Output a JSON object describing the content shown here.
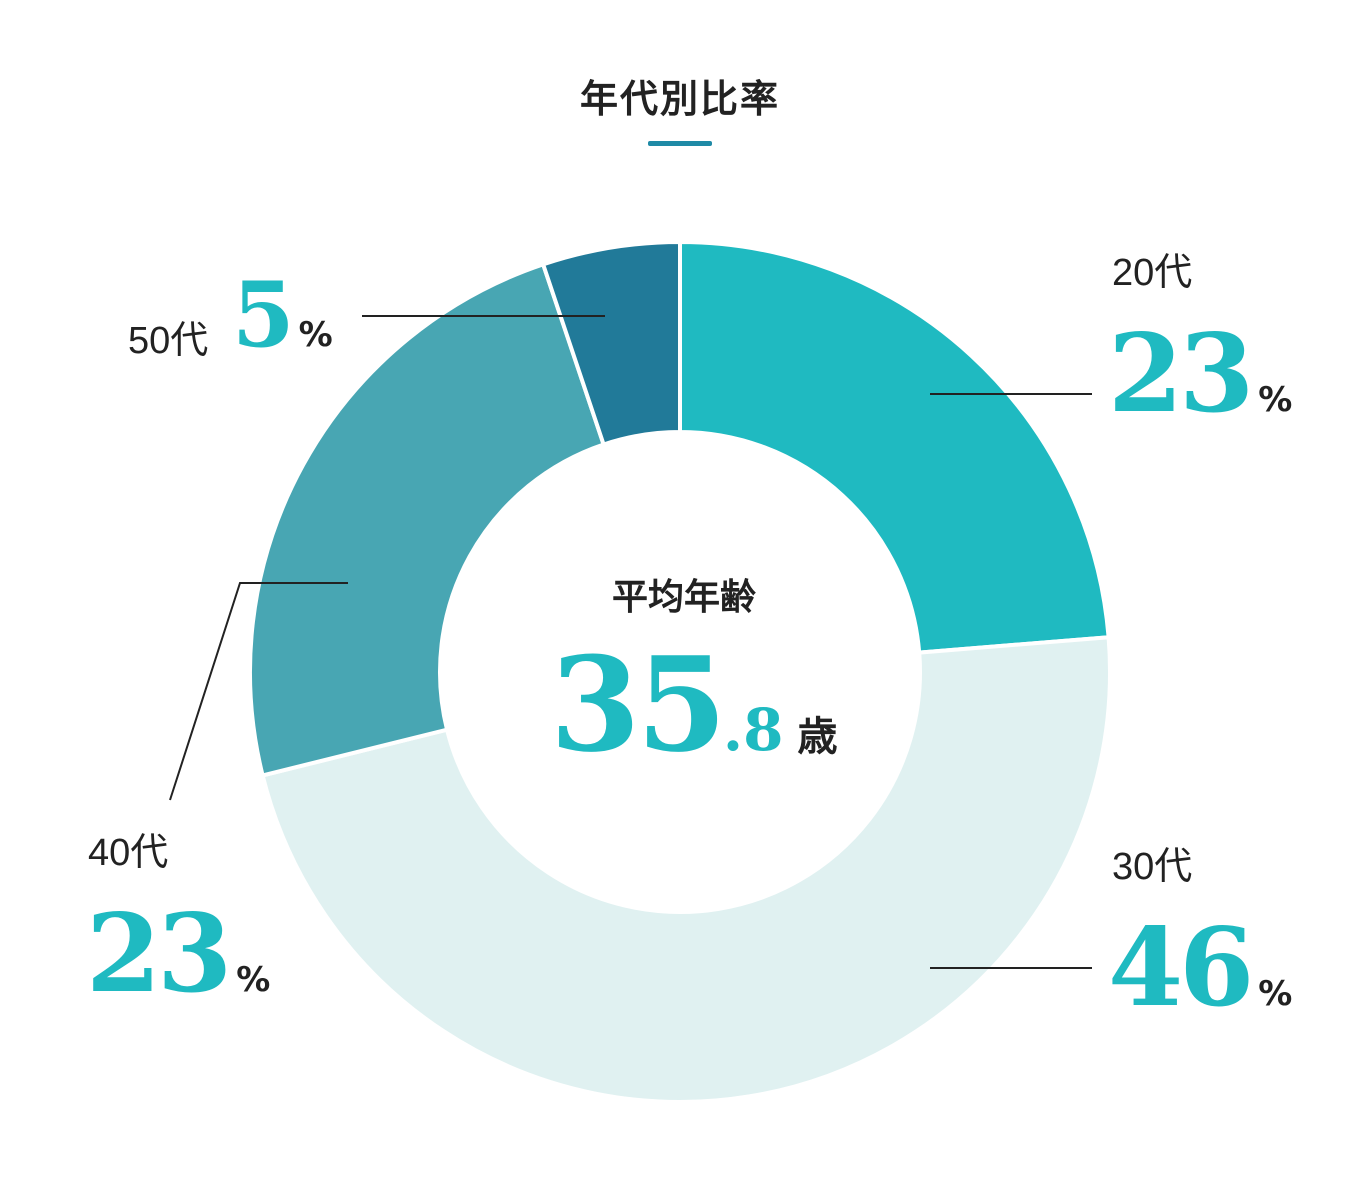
{
  "chart_data": {
    "type": "pie",
    "title": "年代別比率",
    "categories": [
      "20代",
      "30代",
      "40代",
      "50代"
    ],
    "values": [
      23,
      46,
      23,
      5
    ],
    "value_suffix": "%",
    "colors": [
      "#1fbac1",
      "#e0f1f1",
      "#48a6b3",
      "#217a99"
    ],
    "center_label": "平均年齢",
    "center_value_int": "35",
    "center_value_dec": ".8",
    "center_unit": "歳"
  }
}
